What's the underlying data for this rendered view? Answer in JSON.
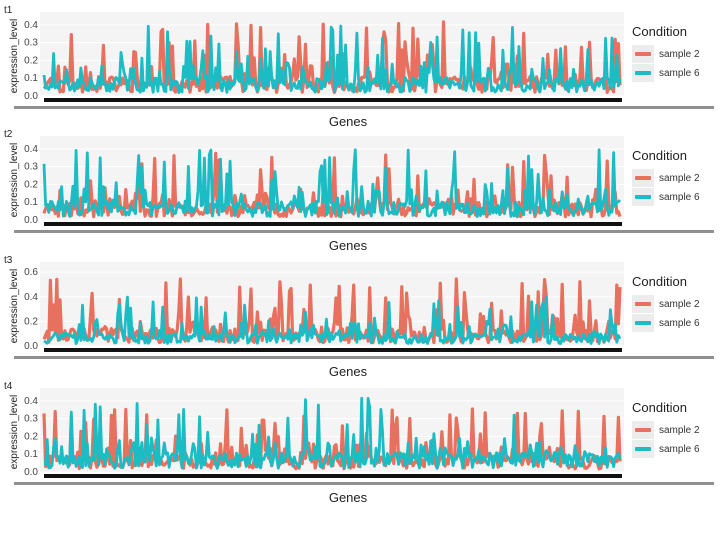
{
  "chart_data": [
    {
      "type": "line",
      "title": "t1",
      "xlabel": "Genes",
      "ylabel": "expression_level",
      "ylim": [
        0,
        0.45
      ],
      "yticks": [
        "0.0",
        "0.1",
        "0.2",
        "0.3",
        "0.4"
      ],
      "ytick_values": [
        0,
        0.1,
        0.2,
        0.3,
        0.4
      ],
      "legend_title": "Condition",
      "legend_position": "right",
      "series": [
        {
          "name": "sample 2",
          "color": "#e8705f",
          "seed": 11,
          "scale": 1.0
        },
        {
          "name": "sample 6",
          "color": "#1bbcc4",
          "seed": 17,
          "scale": 0.95
        }
      ]
    },
    {
      "type": "line",
      "title": "t2",
      "xlabel": "Genes",
      "ylabel": "expression_level",
      "ylim": [
        0,
        0.45
      ],
      "yticks": [
        "0.0",
        "0.1",
        "0.2",
        "0.3",
        "0.4"
      ],
      "ytick_values": [
        0,
        0.1,
        0.2,
        0.3,
        0.4
      ],
      "legend_title": "Condition",
      "legend_position": "right",
      "series": [
        {
          "name": "sample 2",
          "color": "#e8705f",
          "seed": 23,
          "scale": 0.9
        },
        {
          "name": "sample 6",
          "color": "#1bbcc4",
          "seed": 29,
          "scale": 0.98
        }
      ]
    },
    {
      "type": "line",
      "title": "t3",
      "xlabel": "Genes",
      "ylabel": "expression_level",
      "ylim": [
        0,
        0.65
      ],
      "yticks": [
        "0.0",
        "0.2",
        "0.4",
        "0.6"
      ],
      "ytick_values": [
        0,
        0.2,
        0.4,
        0.6
      ],
      "legend_title": "Condition",
      "legend_position": "right",
      "series": [
        {
          "name": "sample 2",
          "color": "#e8705f",
          "seed": 31,
          "scale": 1.3
        },
        {
          "name": "sample 6",
          "color": "#1bbcc4",
          "seed": 37,
          "scale": 0.95
        }
      ]
    },
    {
      "type": "line",
      "title": "t4",
      "xlabel": "Genes",
      "ylabel": "expression_level",
      "ylim": [
        0,
        0.45
      ],
      "yticks": [
        "0.0",
        "0.1",
        "0.2",
        "0.3",
        "0.4"
      ],
      "ytick_values": [
        0,
        0.1,
        0.2,
        0.3,
        0.4
      ],
      "legend_title": "Condition",
      "legend_position": "right",
      "series": [
        {
          "name": "sample 2",
          "color": "#e8705f",
          "seed": 41,
          "scale": 0.85
        },
        {
          "name": "sample 6",
          "color": "#1bbcc4",
          "seed": 43,
          "scale": 1.0
        }
      ]
    }
  ]
}
